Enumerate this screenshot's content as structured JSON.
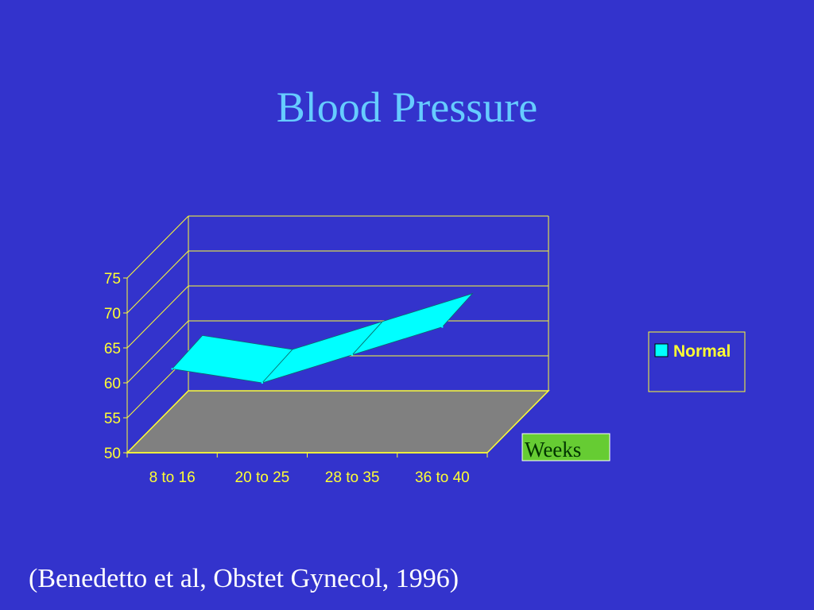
{
  "slide": {
    "title": "Blood Pressure",
    "citation": "(Benedetto et al, Obstet Gynecol, 1996)"
  },
  "chart_data": {
    "type": "area",
    "categories": [
      "8 to 16",
      "20 to 25",
      "28 to 35",
      "36 to 40"
    ],
    "series": [
      {
        "name": "Normal",
        "values": [
          62,
          60,
          64,
          68
        ]
      }
    ],
    "yticks": [
      50,
      55,
      60,
      65,
      70,
      75
    ],
    "ylim": [
      50,
      75
    ],
    "grid": true,
    "three_d": true,
    "legend": "right",
    "annotation": "Weeks",
    "colors": {
      "background": "#3333cc",
      "series_fill": "#00ffff",
      "floor": "#808080",
      "axis": "#ffff33",
      "annotation_bg": "#66cc33"
    }
  }
}
